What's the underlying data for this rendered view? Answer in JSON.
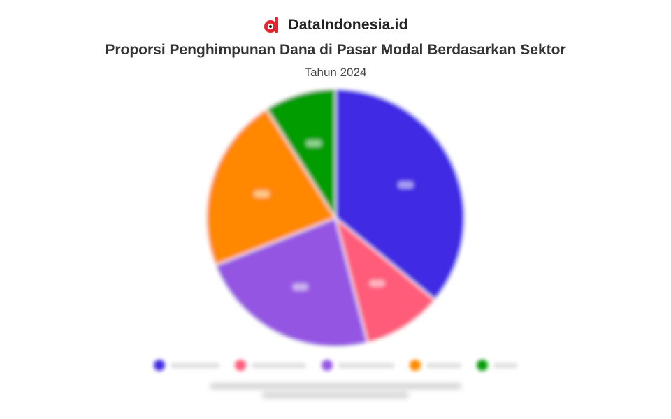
{
  "brand": {
    "name": "DataIndonesia.id",
    "logo_icon": "dataindonesia-logo-icon"
  },
  "chart_data": {
    "type": "pie",
    "title": "Proporsi Penghimpunan Dana di Pasar Modal Berdasarkan Sektor",
    "subtitle": "Tahun 2024",
    "slices": [
      {
        "value": 36,
        "color": "#4029e3"
      },
      {
        "value": 10,
        "color": "#ff5c7a"
      },
      {
        "value": 23,
        "color": "#9456e2"
      },
      {
        "value": 22,
        "color": "#ff8800"
      },
      {
        "value": 9,
        "color": "#039c03"
      }
    ],
    "legend_placement": "bottom"
  }
}
